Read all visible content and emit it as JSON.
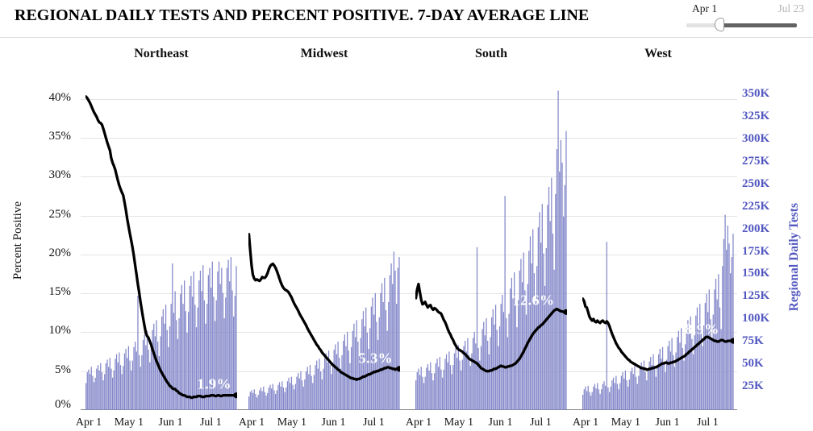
{
  "header": {
    "title": "REGIONAL DAILY TESTS AND PERCENT POSITIVE. 7-DAY AVERAGE LINE"
  },
  "slider": {
    "start_label": "Apr 1",
    "end_label": "Jul 23"
  },
  "axes": {
    "left_title": "Percent Positive",
    "left_ticks": [
      "40%",
      "35%",
      "30%",
      "25%",
      "20%",
      "15%",
      "10%",
      "5%",
      "0%"
    ],
    "right_title": "Regional Daily Tests",
    "right_ticks": [
      "350K",
      "325K",
      "300K",
      "275K",
      "250K",
      "225K",
      "200K",
      "175K",
      "150K",
      "125K",
      "100K",
      "75K",
      "50K",
      "25K"
    ],
    "x_ticks": [
      "Apr 1",
      "May 1",
      "Jun 1",
      "Jul 1"
    ]
  },
  "colors": {
    "bar": "#8387c9",
    "bar_edge": "#7075bf",
    "line": "#000000",
    "right_axis": "#5358c0",
    "grid": "#e4e4e4",
    "baseline": "#8a8a8a",
    "muted_label": "#b3b3b3"
  },
  "chart_data": {
    "type": "bar",
    "subtype": "small-multiples bar+line dual axis",
    "x_start": "Apr 1",
    "x_end": "Jul 23",
    "days": 114,
    "x_tick_days": [
      0,
      30,
      61,
      91
    ],
    "pct_axis": {
      "label": "Percent Positive",
      "min": 0,
      "max": 40,
      "step": 5,
      "unit": "%"
    },
    "tests_axis": {
      "label": "Regional Daily Tests",
      "min": 0,
      "max": 350,
      "step": 25,
      "unit": "K"
    },
    "legend_position": "none",
    "grid": "on",
    "regions": [
      {
        "name": "Northeast",
        "end_label": "1.9%",
        "label_anchor": {
          "x": 0.85,
          "y": 0.92
        },
        "tests_k": [
          30,
          42,
          45,
          40,
          48,
          38,
          31,
          36,
          46,
          50,
          44,
          52,
          42,
          33,
          40,
          52,
          56,
          48,
          58,
          46,
          36,
          44,
          57,
          62,
          53,
          64,
          50,
          40,
          49,
          63,
          68,
          58,
          71,
          55,
          44,
          55,
          70,
          76,
          65,
          127,
          61,
          48,
          61,
          78,
          84,
          72,
          88,
          67,
          53,
          70,
          89,
          96,
          82,
          100,
          76,
          60,
          82,
          104,
          112,
          96,
          117,
          89,
          70,
          93,
          118,
          163,
          108,
          132,
          100,
          79,
          102,
          129,
          139,
          118,
          144,
          110,
          86,
          109,
          138,
          149,
          126,
          154,
          117,
          92,
          114,
          144,
          155,
          132,
          161,
          122,
          96,
          118,
          150,
          158,
          136,
          165,
          126,
          99,
          122,
          154,
          165,
          140,
          158,
          130,
          102,
          125,
          158,
          167,
          143,
          170,
          133,
          104,
          127,
          160
        ],
        "pct_avg": [
          40.3,
          40.1,
          39.8,
          39.5,
          39.1,
          38.7,
          38.3,
          38.0,
          37.7,
          37.3,
          37.0,
          36.9,
          36.7,
          36.2,
          35.6,
          35.0,
          34.4,
          33.9,
          33.4,
          32.4,
          31.8,
          31.4,
          30.9,
          30.2,
          29.5,
          28.9,
          28.4,
          28.0,
          27.6,
          26.7,
          25.7,
          24.6,
          23.6,
          22.7,
          21.8,
          20.9,
          19.8,
          18.6,
          17.4,
          16.2,
          15.1,
          13.9,
          12.8,
          11.8,
          10.8,
          9.9,
          9.5,
          9.3,
          8.8,
          8.4,
          7.8,
          7.3,
          6.8,
          6.3,
          5.9,
          5.5,
          5.1,
          4.8,
          4.5,
          4.2,
          3.9,
          3.6,
          3.4,
          3.1,
          3.0,
          2.8,
          2.7,
          2.7,
          2.5,
          2.4,
          2.2,
          2.1,
          2.0,
          1.9,
          1.9,
          1.8,
          1.7,
          1.7,
          1.7,
          1.6,
          1.6,
          1.7,
          1.7,
          1.7,
          1.8,
          1.8,
          1.8,
          1.7,
          1.7,
          1.7,
          1.8,
          1.8,
          1.8,
          1.8,
          1.9,
          1.9,
          1.9,
          1.8,
          1.8,
          1.9,
          1.9,
          1.8,
          1.8,
          1.9,
          1.9,
          1.9,
          1.9,
          1.9,
          1.9,
          1.9,
          1.9,
          1.9,
          1.9,
          1.9
        ]
      },
      {
        "name": "Midwest",
        "end_label": "5.3%",
        "label_anchor": {
          "x": 0.84,
          "y": 0.84
        },
        "tests_k": [
          15,
          20,
          22,
          19,
          23,
          18,
          14,
          17,
          22,
          25,
          21,
          26,
          20,
          16,
          19,
          25,
          28,
          24,
          29,
          22,
          18,
          22,
          28,
          31,
          26,
          32,
          25,
          20,
          25,
          32,
          36,
          30,
          37,
          28,
          23,
          29,
          37,
          41,
          35,
          43,
          33,
          26,
          34,
          43,
          48,
          40,
          50,
          38,
          30,
          39,
          50,
          55,
          46,
          57,
          43,
          34,
          46,
          58,
          63,
          53,
          66,
          50,
          40,
          53,
          67,
          73,
          62,
          76,
          58,
          46,
          61,
          77,
          84,
          71,
          87,
          66,
          52,
          70,
          88,
          96,
          81,
          100,
          76,
          60,
          80,
          101,
          110,
          93,
          114,
          86,
          68,
          91,
          115,
          125,
          106,
          130,
          98,
          78,
          103,
          130,
          141,
          120,
          147,
          111,
          88,
          120,
          150,
          163,
          140,
          176,
          155,
          118,
          158,
          170
        ],
        "pct_avg": [
          22.6,
          20.6,
          18.6,
          17.4,
          16.9,
          16.7,
          16.8,
          16.7,
          16.6,
          16.8,
          17.1,
          17.0,
          17.0,
          17.2,
          17.6,
          18.1,
          18.5,
          18.7,
          18.8,
          18.6,
          18.3,
          17.9,
          17.4,
          16.9,
          16.4,
          16.0,
          15.7,
          15.5,
          15.4,
          15.3,
          15.1,
          14.8,
          14.5,
          14.1,
          13.7,
          13.4,
          13.1,
          12.8,
          12.4,
          12.1,
          11.8,
          11.5,
          11.2,
          10.9,
          10.5,
          10.2,
          9.9,
          9.6,
          9.3,
          9.0,
          8.7,
          8.4,
          8.2,
          7.9,
          7.7,
          7.4,
          7.2,
          7.0,
          6.8,
          6.6,
          6.4,
          6.2,
          6.0,
          5.8,
          5.7,
          5.5,
          5.4,
          5.2,
          5.1,
          4.9,
          4.8,
          4.7,
          4.6,
          4.5,
          4.4,
          4.3,
          4.2,
          4.1,
          4.1,
          4.0,
          4.0,
          3.9,
          4.0,
          4.0,
          4.1,
          4.2,
          4.3,
          4.3,
          4.4,
          4.5,
          4.6,
          4.6,
          4.7,
          4.8,
          4.9,
          4.9,
          5.0,
          5.0,
          5.1,
          5.2,
          5.2,
          5.3,
          5.4,
          5.4,
          5.5,
          5.5,
          5.4,
          5.4,
          5.3,
          5.3,
          5.2,
          5.3,
          5.3,
          5.3
        ]
      },
      {
        "name": "South",
        "end_label": "12.6%",
        "label_anchor": {
          "x": 0.78,
          "y": 0.66
        },
        "tests_k": [
          33,
          42,
          46,
          39,
          48,
          37,
          30,
          37,
          47,
          51,
          44,
          53,
          41,
          33,
          41,
          52,
          57,
          48,
          59,
          45,
          36,
          45,
          57,
          62,
          53,
          65,
          50,
          40,
          50,
          63,
          69,
          58,
          72,
          55,
          44,
          56,
          71,
          77,
          65,
          80,
          61,
          49,
          63,
          80,
          87,
          74,
          181,
          69,
          55,
          71,
          90,
          98,
          83,
          102,
          77,
          62,
          81,
          103,
          112,
          95,
          117,
          89,
          71,
          93,
          118,
          128,
          109,
          238,
          102,
          81,
          107,
          135,
          147,
          124,
          153,
          116,
          92,
          122,
          155,
          168,
          142,
          175,
          133,
          106,
          140,
          177,
          193,
          163,
          201,
          152,
          121,
          160,
          203,
          220,
          186,
          229,
          174,
          138,
          180,
          228,
          248,
          210,
          258,
          196,
          156,
          240,
          290,
          355,
          265,
          300,
          275,
          215,
          250,
          310
        ],
        "pct_avg": [
          14.4,
          15.5,
          16.2,
          15.2,
          14.2,
          13.6,
          13.7,
          13.9,
          13.5,
          13.2,
          13.4,
          13.5,
          13.1,
          12.9,
          13.1,
          13.0,
          12.8,
          12.6,
          12.5,
          12.4,
          12.0,
          11.6,
          11.3,
          10.9,
          10.4,
          10.0,
          9.7,
          9.3,
          9.0,
          8.6,
          8.3,
          8.0,
          7.8,
          7.7,
          7.6,
          7.5,
          7.3,
          7.2,
          7.0,
          6.8,
          6.6,
          6.5,
          6.4,
          6.3,
          6.2,
          6.1,
          6.0,
          5.8,
          5.6,
          5.4,
          5.3,
          5.2,
          5.1,
          5.0,
          5.0,
          5.0,
          5.1,
          5.1,
          5.2,
          5.3,
          5.3,
          5.4,
          5.5,
          5.6,
          5.7,
          5.6,
          5.6,
          5.5,
          5.5,
          5.6,
          5.6,
          5.7,
          5.7,
          5.8,
          5.9,
          6.0,
          6.2,
          6.4,
          6.6,
          6.9,
          7.2,
          7.5,
          7.9,
          8.2,
          8.6,
          8.9,
          9.2,
          9.5,
          9.8,
          10.0,
          10.2,
          10.4,
          10.6,
          10.7,
          10.9,
          11.0,
          11.2,
          11.4,
          11.6,
          11.8,
          12.0,
          12.2,
          12.4,
          12.6,
          12.8,
          12.9,
          13.0,
          12.9,
          12.8,
          12.7,
          12.7,
          12.6,
          12.6,
          12.6
        ]
      },
      {
        "name": "West",
        "end_label": "8.9%",
        "label_anchor": {
          "x": 0.79,
          "y": 0.75
        },
        "tests_k": [
          17,
          23,
          26,
          21,
          27,
          20,
          16,
          20,
          26,
          29,
          24,
          30,
          23,
          18,
          23,
          29,
          32,
          27,
          187,
          25,
          20,
          26,
          33,
          36,
          30,
          38,
          29,
          23,
          30,
          38,
          42,
          35,
          44,
          33,
          26,
          34,
          43,
          47,
          40,
          49,
          37,
          29,
          38,
          48,
          53,
          45,
          55,
          42,
          33,
          43,
          54,
          59,
          50,
          62,
          47,
          37,
          49,
          62,
          68,
          57,
          70,
          53,
          42,
          56,
          71,
          77,
          65,
          80,
          61,
          48,
          64,
          81,
          88,
          75,
          91,
          69,
          55,
          73,
          92,
          100,
          85,
          104,
          79,
          62,
          83,
          105,
          114,
          96,
          118,
          90,
          71,
          94,
          119,
          129,
          109,
          134,
          101,
          80,
          106,
          134,
          146,
          123,
          151,
          114,
          90,
          160,
          190,
          217,
          178,
          205,
          185,
          152,
          170,
          196
        ],
        "pct_avg": [
          14.3,
          14.0,
          13.3,
          13.2,
          12.6,
          12.0,
          11.7,
          11.5,
          11.7,
          11.4,
          11.3,
          11.5,
          11.3,
          11.2,
          11.4,
          11.5,
          11.3,
          11.2,
          11.4,
          11.2,
          10.8,
          10.3,
          9.8,
          9.4,
          9.0,
          8.6,
          8.3,
          8.0,
          7.8,
          7.5,
          7.3,
          7.1,
          6.9,
          6.7,
          6.5,
          6.4,
          6.2,
          6.1,
          6.0,
          5.9,
          5.8,
          5.7,
          5.6,
          5.5,
          5.4,
          5.4,
          5.3,
          5.3,
          5.2,
          5.2,
          5.3,
          5.3,
          5.4,
          5.4,
          5.5,
          5.5,
          5.6,
          5.7,
          5.8,
          5.9,
          6.0,
          6.0,
          6.1,
          6.1,
          6.0,
          6.0,
          6.1,
          6.1,
          6.2,
          6.2,
          6.3,
          6.4,
          6.5,
          6.6,
          6.7,
          6.8,
          6.9,
          7.0,
          7.2,
          7.3,
          7.5,
          7.6,
          7.8,
          7.9,
          8.1,
          8.2,
          8.4,
          8.5,
          8.7,
          8.8,
          9.0,
          9.1,
          9.3,
          9.4,
          9.4,
          9.3,
          9.2,
          9.1,
          9.0,
          8.9,
          8.9,
          8.8,
          8.8,
          8.9,
          9.0,
          9.0,
          8.9,
          8.8,
          8.8,
          8.9,
          8.9,
          8.9,
          8.9,
          8.9
        ]
      }
    ]
  }
}
